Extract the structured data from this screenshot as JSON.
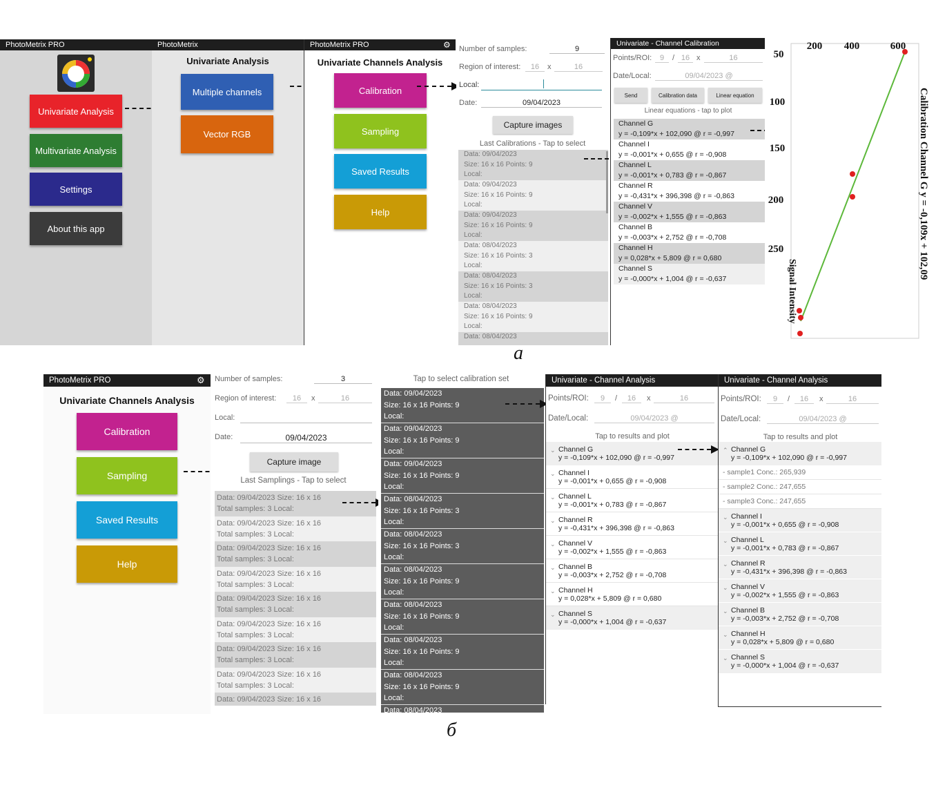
{
  "captions": {
    "a": "а",
    "b": "б"
  },
  "p1": {
    "header": "PhotoMetrix PRO",
    "buttons": [
      {
        "label": "Univariate Analysis",
        "color": "#e8232a"
      },
      {
        "label": "Multivariate Analysis",
        "color": "#2e7d32"
      },
      {
        "label": "Settings",
        "color": "#2b2a8c"
      },
      {
        "label": "About this app",
        "color": "#3b3b3b"
      }
    ]
  },
  "p2": {
    "header": "PhotoMetrix",
    "title": "Univariate Analysis",
    "buttons": [
      {
        "label": "Multiple channels",
        "color": "#2f5fb3"
      },
      {
        "label": "Vector RGB",
        "color": "#d8650e"
      }
    ]
  },
  "p3": {
    "header": "PhotoMetrix PRO",
    "title": "Univariate Channels Analysis",
    "buttons": [
      {
        "label": "Calibration",
        "color": "#c2228f"
      },
      {
        "label": "Sampling",
        "color": "#8fc21e"
      },
      {
        "label": "Saved Results",
        "color": "#149fd6"
      },
      {
        "label": "Help",
        "color": "#c99a06"
      }
    ]
  },
  "p4": {
    "num_samples_label": "Number of samples:",
    "num_samples": "9",
    "roi_label": "Region of interest:",
    "roi_w": "16",
    "roi_x": "x",
    "roi_h": "16",
    "local_label": "Local:",
    "date_label": "Date:",
    "date": "09/04/2023",
    "capture": "Capture images",
    "list_caption": "Last Calibrations - Tap to select",
    "items": [
      {
        "l1": "Data: 09/04/2023",
        "l2": "Size: 16 x 16 Points: 9",
        "l3": "Local:"
      },
      {
        "l1": "Data: 09/04/2023",
        "l2": "Size: 16 x 16 Points: 9",
        "l3": "Local:"
      },
      {
        "l1": "Data: 09/04/2023",
        "l2": "Size: 16 x 16 Points: 9",
        "l3": "Local:"
      },
      {
        "l1": "Data: 08/04/2023",
        "l2": "Size: 16 x 16 Points: 3",
        "l3": "Local:"
      },
      {
        "l1": "Data: 08/04/2023",
        "l2": "Size: 16 x 16 Points: 3",
        "l3": "Local:"
      },
      {
        "l1": "Data: 08/04/2023",
        "l2": "Size: 16 x 16 Points: 9",
        "l3": "Local:"
      },
      {
        "l1": "Data: 08/04/2023",
        "l2": "",
        "l3": ""
      }
    ]
  },
  "p5": {
    "header": "Univariate - Channel Calibration",
    "points_label": "Points/ROI:",
    "points": "9",
    "slash": "/",
    "roi_w": "16",
    "x": "x",
    "roi_h": "16",
    "date_label": "Date/Local:",
    "date": "09/04/2023 @",
    "btn_send": "Send",
    "btn_data": "Calibration data",
    "btn_linear": "Linear equation",
    "eq_caption": "Linear equations - tap to plot",
    "channels": [
      {
        "name": "Channel G",
        "eq": "y = -0,109*x + 102,090 @ r = -0,997"
      },
      {
        "name": "Channel I",
        "eq": "y = -0,001*x + 0,655 @ r = -0,908"
      },
      {
        "name": "Channel L",
        "eq": "y = -0,001*x + 0,783 @ r = -0,867"
      },
      {
        "name": "Channel R",
        "eq": "y = -0,431*x + 396,398 @ r = -0,863"
      },
      {
        "name": "Channel V",
        "eq": "y = -0,002*x + 1,555 @ r = -0,863"
      },
      {
        "name": "Channel B",
        "eq": "y = -0,003*x + 2,752 @ r = -0,708"
      },
      {
        "name": "Channel H",
        "eq": "y = 0,028*x + 5,809 @ r = 0,680"
      },
      {
        "name": "Channel S",
        "eq": "y = -0,000*x + 1,004 @ r = -0,637"
      }
    ]
  },
  "plot": {
    "top_ticks": [
      "200",
      "400",
      "600"
    ],
    "left_ticks": [
      "50",
      "100",
      "150",
      "200",
      "250"
    ],
    "ylabel": "Signal Intensity",
    "title": "Calibration Channel G y = -0,109x + 102,09",
    "line_color": "#5cb83a",
    "point_color": "#e02020"
  },
  "q1": {
    "header": "PhotoMetrix PRO",
    "title": "Univariate Channels Analysis",
    "buttons": [
      {
        "label": "Calibration",
        "color": "#c2228f"
      },
      {
        "label": "Sampling",
        "color": "#8fc21e"
      },
      {
        "label": "Saved Results",
        "color": "#149fd6"
      },
      {
        "label": "Help",
        "color": "#c99a06"
      }
    ]
  },
  "q2": {
    "num_samples_label": "Number of samples:",
    "num_samples": "3",
    "roi_label": "Region of interest:",
    "roi_w": "16",
    "roi_x": "x",
    "roi_h": "16",
    "local_label": "Local:",
    "date_label": "Date:",
    "date": "09/04/2023",
    "capture": "Capture image",
    "list_caption": "Last Samplings - Tap to select",
    "items": [
      {
        "l1": "Data: 09/04/2023  Size: 16 x 16",
        "l2": "Total samples: 3     Local:"
      },
      {
        "l1": "Data: 09/04/2023  Size: 16 x 16",
        "l2": "Total samples: 3     Local:"
      },
      {
        "l1": "Data: 09/04/2023  Size: 16 x 16",
        "l2": "Total samples: 3     Local:"
      },
      {
        "l1": "Data: 09/04/2023  Size: 16 x 16",
        "l2": "Total samples: 3     Local:"
      },
      {
        "l1": "Data: 09/04/2023  Size: 16 x 16",
        "l2": "Total samples: 3     Local:"
      },
      {
        "l1": "Data: 09/04/2023  Size: 16 x 16",
        "l2": "Total samples: 3     Local:"
      },
      {
        "l1": "Data: 09/04/2023  Size: 16 x 16",
        "l2": "Total samples: 3     Local:"
      },
      {
        "l1": "Data: 09/04/2023  Size: 16 x 16",
        "l2": "Total samples: 3     Local:"
      },
      {
        "l1": "Data: 09/04/2023  Size: 16 x 16",
        "l2": ""
      }
    ]
  },
  "q3": {
    "caption": "Tap to select calibration set",
    "items": [
      {
        "l1": "Data: 09/04/2023",
        "l2": "Size: 16 x 16  Points: 9",
        "l3": "Local:"
      },
      {
        "l1": "Data: 09/04/2023",
        "l2": "Size: 16 x 16  Points: 9",
        "l3": "Local:"
      },
      {
        "l1": "Data: 09/04/2023",
        "l2": "Size: 16 x 16  Points: 9",
        "l3": "Local:"
      },
      {
        "l1": "Data: 08/04/2023",
        "l2": "Size: 16 x 16  Points: 3",
        "l3": "Local:"
      },
      {
        "l1": "Data: 08/04/2023",
        "l2": "Size: 16 x 16  Points: 3",
        "l3": "Local:"
      },
      {
        "l1": "Data: 08/04/2023",
        "l2": "Size: 16 x 16  Points: 9",
        "l3": "Local:"
      },
      {
        "l1": "Data: 08/04/2023",
        "l2": "Size: 16 x 16  Points: 9",
        "l3": "Local:"
      },
      {
        "l1": "Data: 08/04/2023",
        "l2": "Size: 16 x 16  Points: 9",
        "l3": "Local:"
      },
      {
        "l1": "Data: 08/04/2023",
        "l2": "Size: 16 x 16  Points: 9",
        "l3": "Local:"
      },
      {
        "l1": "Data: 08/04/2023",
        "l2": "",
        "l3": ""
      }
    ]
  },
  "q4": {
    "header": "Univariate - Channel Analysis",
    "points_label": "Points/ROI:",
    "points": "9",
    "slash": "/",
    "roi_w": "16",
    "x": "x",
    "roi_h": "16",
    "date_label": "Date/Local:",
    "date": "09/04/2023 @",
    "caption": "Tap to results and plot"
  },
  "q5": {
    "header": "Univariate - Channel Analysis",
    "points_label": "Points/ROI:",
    "points": "9",
    "slash": "/",
    "roi_w": "16",
    "x": "x",
    "roi_h": "16",
    "date_label": "Date/Local:",
    "date": "09/04/2023 @",
    "caption": "Tap to results and plot",
    "samples": [
      "- sample1 Conc.: 265,939",
      "- sample2 Conc.: 247,655",
      "- sample3 Conc.: 247,655"
    ]
  }
}
